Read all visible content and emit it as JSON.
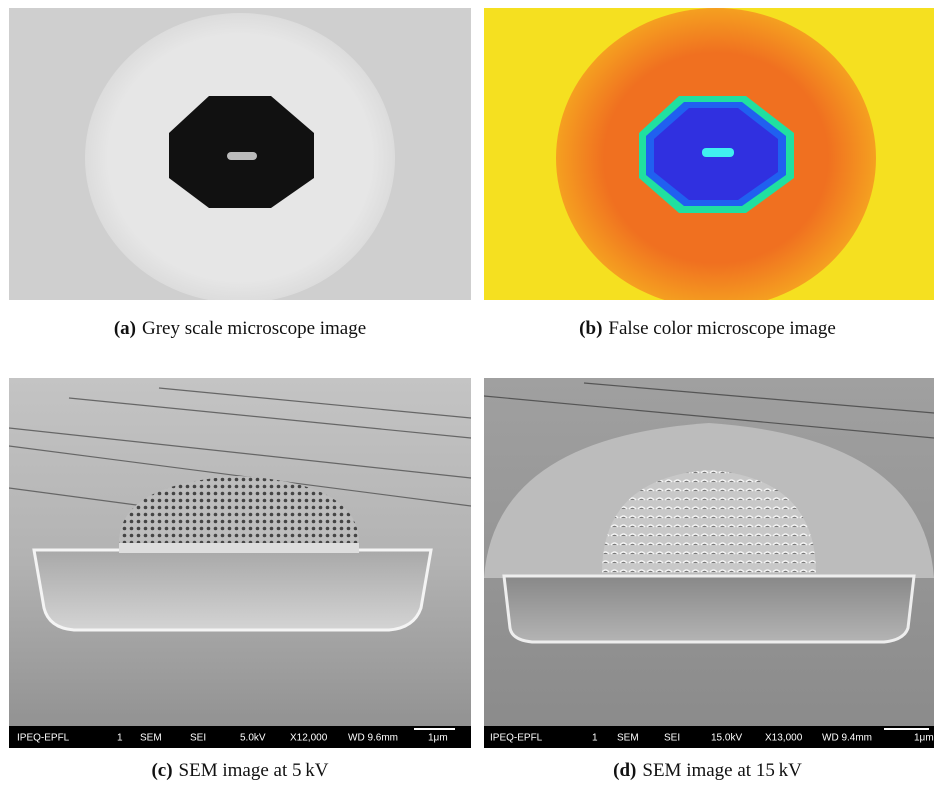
{
  "panels": [
    {
      "label": "(a)",
      "caption": "Grey scale microscope image"
    },
    {
      "label": "(b)",
      "caption": "False color microscope image"
    },
    {
      "label": "(c)",
      "caption": "SEM image at 5 kV",
      "info_bar": [
        "IPEQ-EPFL",
        "1",
        "SEM",
        "SEI",
        "5.0kV",
        "X12,000",
        "WD 9.6mm",
        "1μm"
      ]
    },
    {
      "label": "(d)",
      "caption": "SEM image at 15 kV",
      "info_bar": [
        "IPEQ-EPFL",
        "1",
        "SEM",
        "SEI",
        "15.0kV",
        "X13,000",
        "WD 9.4mm",
        "1μm"
      ]
    }
  ]
}
